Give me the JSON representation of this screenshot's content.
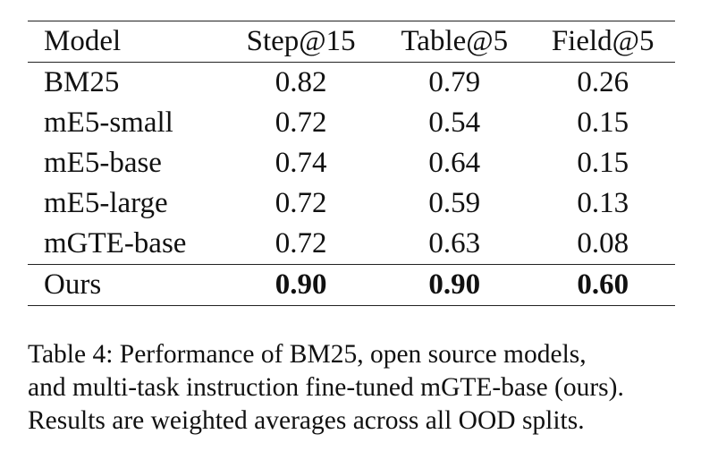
{
  "table": {
    "columns": [
      "Model",
      "Step@15",
      "Table@5",
      "Field@5"
    ],
    "rows": [
      [
        "BM25",
        "0.82",
        "0.79",
        "0.26"
      ],
      [
        "mE5-small",
        "0.72",
        "0.54",
        "0.15"
      ],
      [
        "mE5-base",
        "0.74",
        "0.64",
        "0.15"
      ],
      [
        "mE5-large",
        "0.72",
        "0.59",
        "0.13"
      ],
      [
        "mGTE-base",
        "0.72",
        "0.63",
        "0.08"
      ],
      [
        "Ours",
        "0.90",
        "0.90",
        "0.60"
      ]
    ],
    "bold_row": "Ours"
  },
  "caption": {
    "lines": [
      "Table 4: Performance of BM25, open source models,",
      "and multi-task instruction fine-tuned mGTE-base (ours).",
      "Results are weighted averages across all OOD splits."
    ]
  }
}
